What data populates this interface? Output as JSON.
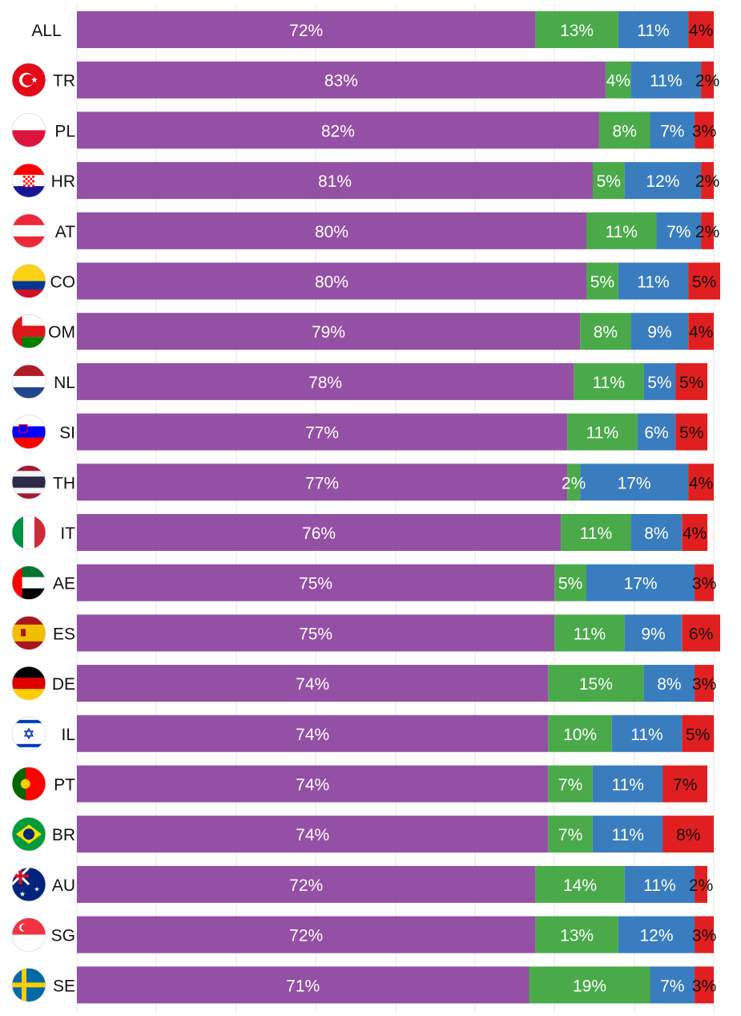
{
  "chart_data": {
    "type": "bar",
    "orientation": "horizontal",
    "stacked": true,
    "categories": [
      "ALL",
      "TR",
      "PL",
      "HR",
      "AT",
      "CO",
      "OM",
      "NL",
      "SI",
      "TH",
      "IT",
      "AE",
      "ES",
      "DE",
      "IL",
      "PT",
      "BR",
      "AU",
      "SG",
      "SE"
    ],
    "series": [
      {
        "name": "purple",
        "color": "#9450a4",
        "values": [
          72,
          83,
          82,
          81,
          80,
          80,
          79,
          78,
          77,
          77,
          76,
          75,
          75,
          74,
          74,
          74,
          74,
          72,
          72,
          71
        ]
      },
      {
        "name": "green",
        "color": "#4aaa4a",
        "values": [
          13,
          4,
          8,
          5,
          11,
          5,
          8,
          11,
          11,
          2,
          11,
          5,
          11,
          15,
          10,
          7,
          7,
          14,
          13,
          19
        ]
      },
      {
        "name": "blue",
        "color": "#3a7dbf",
        "values": [
          11,
          11,
          7,
          12,
          7,
          11,
          9,
          5,
          6,
          17,
          8,
          17,
          9,
          8,
          11,
          11,
          11,
          11,
          12,
          7
        ]
      },
      {
        "name": "red",
        "color": "#e02020",
        "values": [
          4,
          2,
          3,
          2,
          2,
          5,
          4,
          5,
          5,
          4,
          4,
          3,
          6,
          3,
          5,
          7,
          8,
          2,
          3,
          3
        ]
      }
    ],
    "labels": [
      [
        "72%",
        "13%",
        "11%",
        "4%"
      ],
      [
        "83%",
        "4%",
        "11%",
        "2%"
      ],
      [
        "82%",
        "8%",
        "7%",
        "3%"
      ],
      [
        "81%",
        "5%",
        "12%",
        "2%"
      ],
      [
        "80%",
        "11%",
        "7%",
        "2%"
      ],
      [
        "80%",
        "5%",
        "11%",
        "5%"
      ],
      [
        "79%",
        "8%",
        "9%",
        "4%"
      ],
      [
        "78%",
        "11%",
        "5%",
        "5%"
      ],
      [
        "77%",
        "11%",
        "6%",
        "5%"
      ],
      [
        "77%",
        "2%",
        "17%",
        "4%"
      ],
      [
        "76%",
        "11%",
        "8%",
        "4%"
      ],
      [
        "75%",
        "5%",
        "17%",
        "3%"
      ],
      [
        "75%",
        "11%",
        "9%",
        "6%"
      ],
      [
        "74%",
        "15%",
        "8%",
        "3%"
      ],
      [
        "74%",
        "10%",
        "11%",
        "5%"
      ],
      [
        "74%",
        "7%",
        "11%",
        "7%"
      ],
      [
        "74%",
        "7%",
        "11%",
        "8%"
      ],
      [
        "72%",
        "14%",
        "11%",
        "2%"
      ],
      [
        "72%",
        "13%",
        "12%",
        "3%"
      ],
      [
        "71%",
        "19%",
        "7%",
        "3%"
      ]
    ],
    "flags": [
      "none",
      "tr-flag-icon",
      "pl-flag-icon",
      "hr-flag-icon",
      "at-flag-icon",
      "co-flag-icon",
      "om-flag-icon",
      "nl-flag-icon",
      "si-flag-icon",
      "th-flag-icon",
      "it-flag-icon",
      "ae-flag-icon",
      "es-flag-icon",
      "de-flag-icon",
      "il-flag-icon",
      "pt-flag-icon",
      "br-flag-icon",
      "au-flag-icon",
      "sg-flag-icon",
      "se-flag-icon"
    ],
    "xlim": [
      0,
      100
    ],
    "grid": true,
    "legend": "none"
  }
}
